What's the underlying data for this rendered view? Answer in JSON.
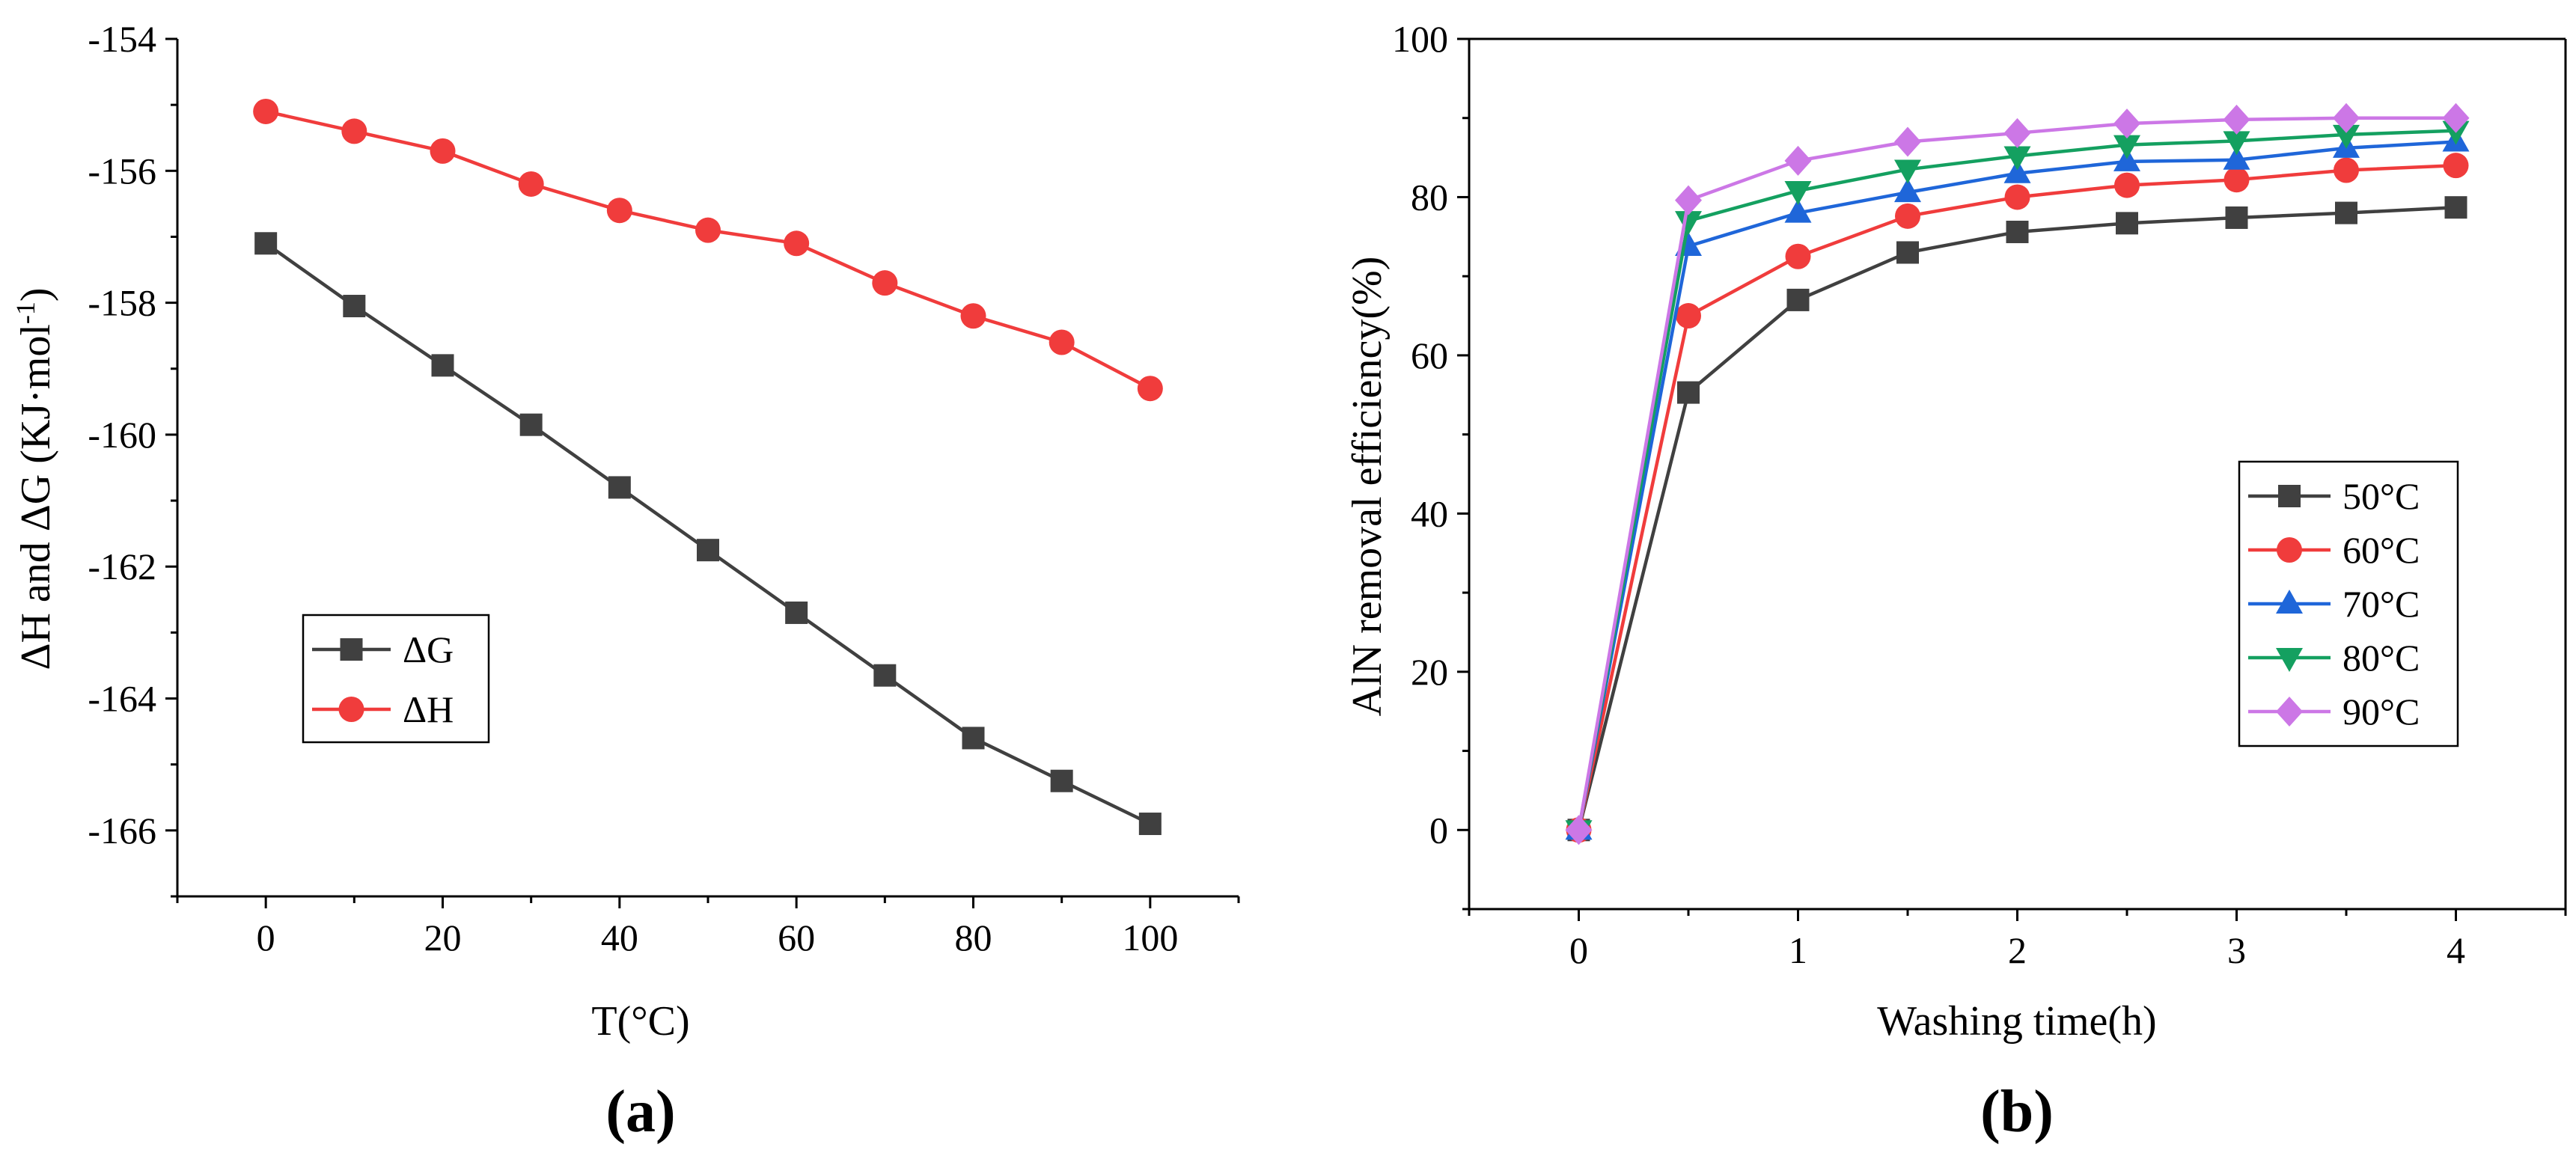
{
  "chart_data": [
    {
      "type": "line",
      "panel_label": "(a)",
      "xlabel": "T(°C)",
      "ylabel": "ΔH and ΔG (KJ·mol",
      "ylabel_sup": "-1",
      "ylabel_close": ")",
      "xlim": [
        -10,
        110
      ],
      "ylim": [
        -167,
        -154
      ],
      "xticks": [
        0,
        20,
        40,
        60,
        80,
        100
      ],
      "yticks": [
        -154,
        -156,
        -158,
        -160,
        -162,
        -164,
        -166
      ],
      "x": [
        0,
        10,
        20,
        30,
        40,
        50,
        60,
        70,
        80,
        90,
        100
      ],
      "legend_position": "lower-left",
      "series": [
        {
          "name": "ΔG",
          "color": "#404040",
          "marker": "square",
          "values": [
            -157.1,
            -158.05,
            -158.95,
            -159.85,
            -160.8,
            -161.75,
            -162.7,
            -163.65,
            -164.6,
            -165.25,
            -165.9
          ]
        },
        {
          "name": "ΔH",
          "color": "#f03c3c",
          "marker": "circle",
          "values": [
            -155.1,
            -155.4,
            -155.7,
            -156.2,
            -156.6,
            -156.9,
            -157.1,
            -157.7,
            -158.2,
            -158.6,
            -159.3
          ]
        }
      ]
    },
    {
      "type": "line",
      "panel_label": "(b)",
      "xlabel": "Washing time(h)",
      "ylabel": "AlN removal efficiency(%)",
      "xlim": [
        -0.5,
        4.5
      ],
      "ylim": [
        -10,
        100
      ],
      "xticks": [
        0,
        1,
        2,
        3,
        4
      ],
      "yticks": [
        0,
        20,
        40,
        60,
        80,
        100
      ],
      "x": [
        0,
        0.5,
        1,
        1.5,
        2,
        2.5,
        3,
        3.5,
        4
      ],
      "legend_position": "right",
      "series": [
        {
          "name": "50°C",
          "color": "#404040",
          "marker": "square",
          "values": [
            0,
            55.3,
            67,
            73,
            75.6,
            76.7,
            77.4,
            78,
            78.7
          ]
        },
        {
          "name": "60°C",
          "color": "#f03c3c",
          "marker": "circle",
          "values": [
            0,
            65,
            72.5,
            77.6,
            80,
            81.5,
            82.2,
            83.4,
            84
          ]
        },
        {
          "name": "70°C",
          "color": "#1f66d9",
          "marker": "triangle-up",
          "values": [
            0,
            73.8,
            78,
            80.6,
            83,
            84.5,
            84.7,
            86.2,
            87
          ]
        },
        {
          "name": "80°C",
          "color": "#14a060",
          "marker": "triangle-down",
          "values": [
            0,
            77,
            80.8,
            83.5,
            85.2,
            86.6,
            87.1,
            87.9,
            88.4
          ]
        },
        {
          "name": "90°C",
          "color": "#cc77e6",
          "marker": "diamond",
          "values": [
            0,
            79.6,
            84.6,
            87,
            88.1,
            89.3,
            89.8,
            90,
            90
          ]
        }
      ]
    }
  ]
}
